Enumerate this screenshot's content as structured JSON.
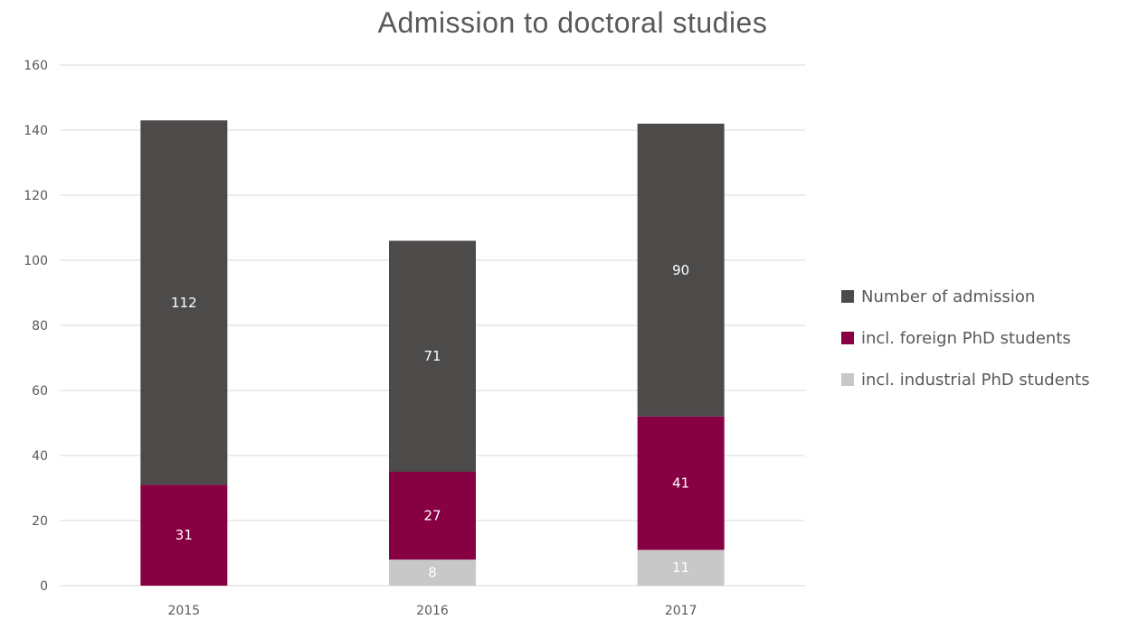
{
  "chart_data": {
    "type": "bar",
    "stacked": true,
    "title": "Admission to doctoral studies",
    "xlabel": "",
    "ylabel": "",
    "categories": [
      "2015",
      "2016",
      "2017"
    ],
    "ylim": [
      0,
      160
    ],
    "yticks": [
      0,
      20,
      40,
      60,
      80,
      100,
      120,
      140,
      160
    ],
    "grid": true,
    "legend_position": "right",
    "series": [
      {
        "name": "incl. industrial PhD students",
        "values": [
          0,
          8,
          11
        ],
        "labels": [
          "",
          "8",
          "11"
        ],
        "color": "#c8c8c8"
      },
      {
        "name": "incl. foreign PhD students",
        "values": [
          31,
          27,
          41
        ],
        "labels": [
          "31",
          "27",
          "41"
        ],
        "color": "#870042"
      },
      {
        "name": "Number of admission",
        "values": [
          112,
          71,
          90
        ],
        "labels": [
          "112",
          "71",
          "90"
        ],
        "color": "#4d4a4a"
      }
    ],
    "legend_order": [
      "Number of admission",
      "incl. foreign PhD students",
      "incl. industrial PhD students"
    ]
  }
}
